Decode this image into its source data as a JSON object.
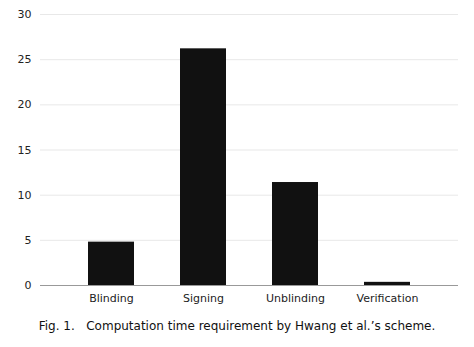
{
  "chart_data": {
    "type": "bar",
    "caption": "Fig. 1.   Computation time requirement by Hwang et al.’s scheme.",
    "categories": [
      "Blinding",
      "Signing",
      "Unblinding",
      "Verification"
    ],
    "values": [
      4.8,
      26.2,
      11.4,
      0.35
    ],
    "color": "#111111",
    "ylim": [
      0,
      30
    ],
    "yticks": [
      0,
      5,
      10,
      15,
      20,
      25,
      30
    ],
    "grid": true
  }
}
